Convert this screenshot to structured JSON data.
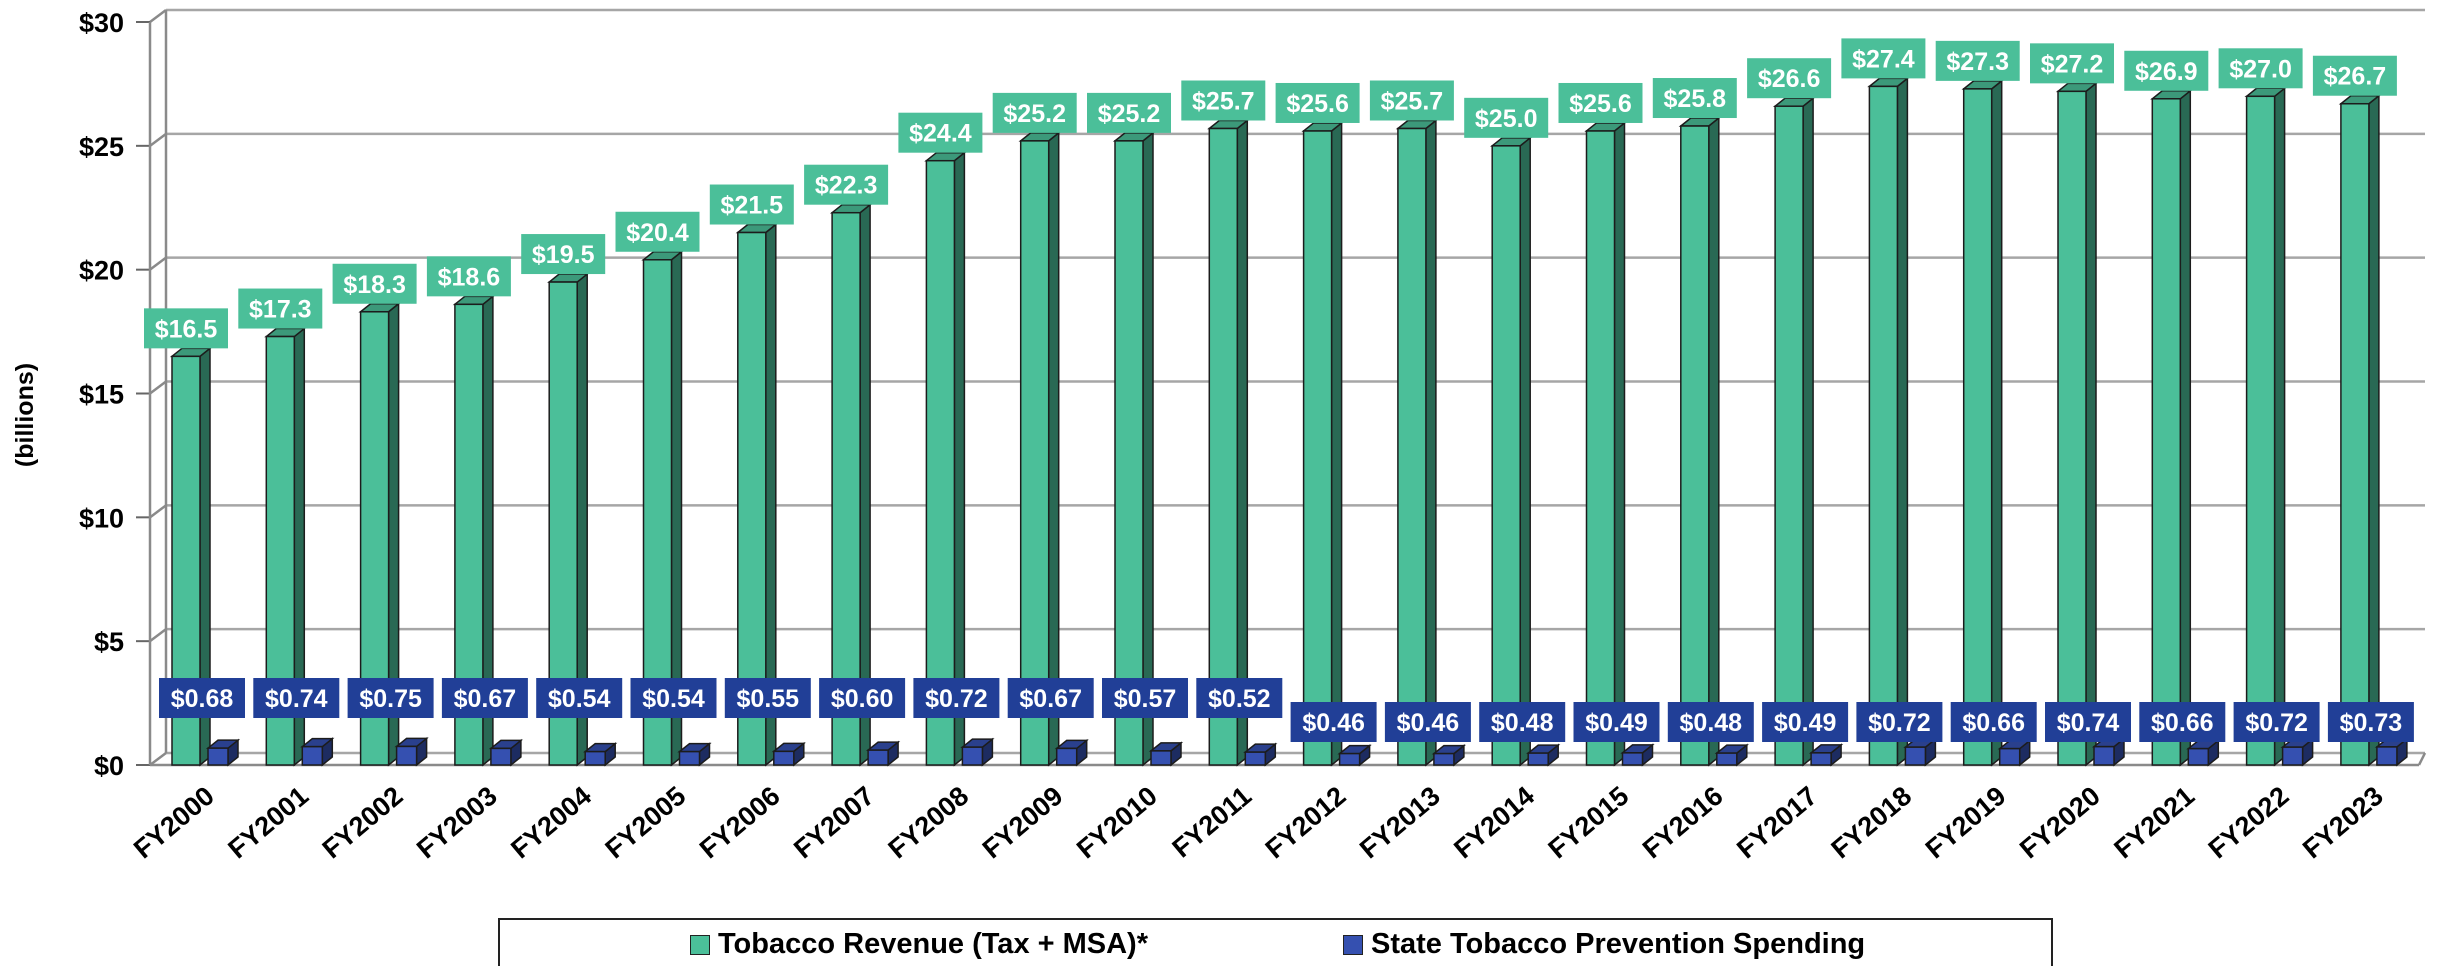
{
  "chart_data": {
    "type": "bar",
    "ylabel": "(billions)",
    "ylim": [
      0,
      30
    ],
    "y_ticks": [
      {
        "value": 0,
        "label": "$0"
      },
      {
        "value": 5,
        "label": "$5"
      },
      {
        "value": 10,
        "label": "$10"
      },
      {
        "value": 15,
        "label": "$15"
      },
      {
        "value": 20,
        "label": "$20"
      },
      {
        "value": 25,
        "label": "$25"
      },
      {
        "value": 30,
        "label": "$30"
      }
    ],
    "grid": true,
    "legend_position": "bottom",
    "categories": [
      "FY2000",
      "FY2001",
      "FY2002",
      "FY2003",
      "FY2004",
      "FY2005",
      "FY2006",
      "FY2007",
      "FY2008",
      "FY2009",
      "FY2010",
      "FY2011",
      "FY2012",
      "FY2013",
      "FY2014",
      "FY2015",
      "FY2016",
      "FY2017",
      "FY2018",
      "FY2019",
      "FY2020",
      "FY2021",
      "FY2022",
      "FY2023"
    ],
    "series": [
      {
        "name": "Tobacco Revenue (Tax + MSA)*",
        "color": "#4bbf99",
        "values": [
          16.5,
          17.3,
          18.3,
          18.6,
          19.5,
          20.4,
          21.5,
          22.3,
          24.4,
          25.2,
          25.2,
          25.7,
          25.6,
          25.7,
          25.0,
          25.6,
          25.8,
          26.6,
          27.4,
          27.3,
          27.2,
          26.9,
          27.0,
          26.7
        ],
        "labels": [
          "$16.5",
          "$17.3",
          "$18.3",
          "$18.6",
          "$19.5",
          "$20.4",
          "$21.5",
          "$22.3",
          "$24.4",
          "$25.2",
          "$25.2",
          "$25.7",
          "$25.6",
          "$25.7",
          "$25.0",
          "$25.6",
          "$25.8",
          "$26.6",
          "$27.4",
          "$27.3",
          "$27.2",
          "$26.9",
          "$27.0",
          "$26.7"
        ]
      },
      {
        "name": "State Tobacco Prevention Spending",
        "color": "#3550b0",
        "values": [
          0.68,
          0.74,
          0.75,
          0.67,
          0.54,
          0.54,
          0.55,
          0.6,
          0.72,
          0.67,
          0.57,
          0.52,
          0.46,
          0.46,
          0.48,
          0.49,
          0.48,
          0.49,
          0.72,
          0.66,
          0.74,
          0.66,
          0.72,
          0.73
        ],
        "labels": [
          "$0.68",
          "$0.74",
          "$0.75",
          "$0.67",
          "$0.54",
          "$0.54",
          "$0.55",
          "$0.60",
          "$0.72",
          "$0.67",
          "$0.57",
          "$0.52",
          "$0.46",
          "$0.46",
          "$0.48",
          "$0.49",
          "$0.48",
          "$0.49",
          "$0.72",
          "$0.66",
          "$0.74",
          "$0.66",
          "$0.72",
          "$0.73"
        ]
      }
    ]
  }
}
